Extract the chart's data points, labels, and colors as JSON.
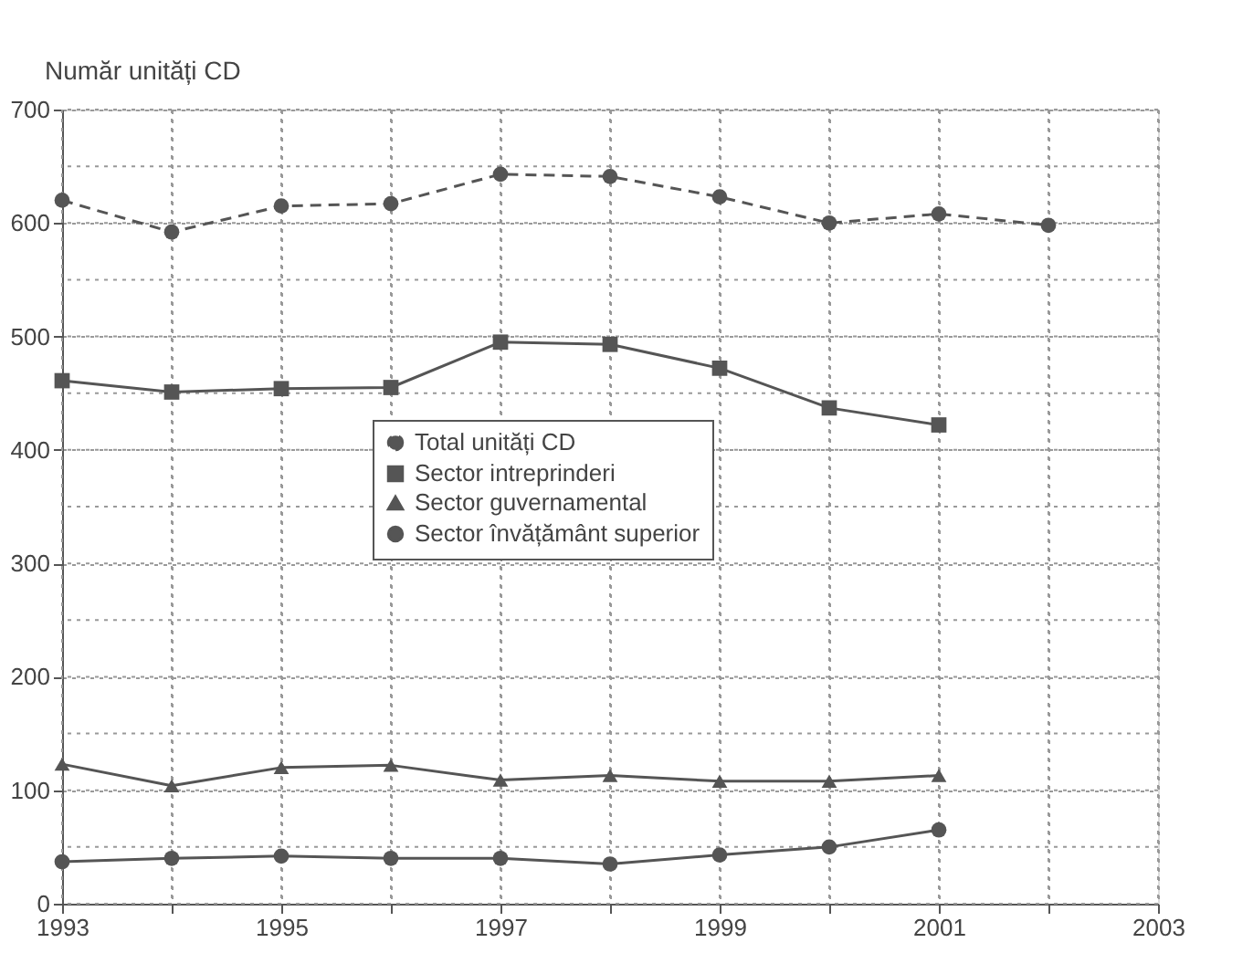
{
  "chart_data": {
    "type": "line",
    "ylabel": "Număr unități CD",
    "xlim": [
      1993,
      2003
    ],
    "xticks": [
      1993,
      {
        "value": 1994,
        "label": null
      },
      1995,
      {
        "value": 1996,
        "label": null
      },
      1997,
      {
        "value": 1998,
        "label": null
      },
      1999,
      {
        "value": 2000,
        "label": null
      },
      2001,
      {
        "value": 2002,
        "label": null
      },
      2003
    ],
    "ylim": [
      0,
      700
    ],
    "yticks": [
      0,
      {
        "value": 50,
        "label": null
      },
      100,
      {
        "value": 150,
        "label": null
      },
      200,
      {
        "value": 250,
        "label": null
      },
      300,
      {
        "value": 350,
        "label": null
      },
      400,
      {
        "value": 450,
        "label": null
      },
      500,
      {
        "value": 550,
        "label": null
      },
      600,
      {
        "value": 650,
        "label": null
      },
      700
    ],
    "grid": true,
    "legend": "center",
    "series": [
      {
        "name": "Total unități CD",
        "color": "#555555",
        "marker": "circle",
        "line_style": "dashed",
        "x": [
          1993,
          1994,
          1995,
          1996,
          1997,
          1998,
          1999,
          2000,
          2001,
          2002
        ],
        "values": [
          620,
          592,
          615,
          617,
          643,
          641,
          623,
          600,
          608,
          598
        ]
      },
      {
        "name": "Sector intreprinderi",
        "color": "#555555",
        "marker": "square",
        "line_style": "solid",
        "x": [
          1993,
          1994,
          1995,
          1996,
          1997,
          1998,
          1999,
          2000,
          2001
        ],
        "values": [
          461,
          451,
          454,
          455,
          495,
          493,
          472,
          437,
          422
        ]
      },
      {
        "name": "Sector guvernamental",
        "color": "#555555",
        "marker": "triangle",
        "line_style": "solid",
        "x": [
          1993,
          1994,
          1995,
          1996,
          1997,
          1998,
          1999,
          2000,
          2001
        ],
        "values": [
          123,
          104,
          120,
          122,
          109,
          113,
          108,
          108,
          113
        ]
      },
      {
        "name": "Sector învățământ superior",
        "color": "#555555",
        "marker": "circle",
        "line_style": "solid",
        "x": [
          1993,
          1994,
          1995,
          1996,
          1997,
          1998,
          1999,
          2000,
          2001
        ],
        "values": [
          37,
          40,
          42,
          40,
          40,
          35,
          43,
          50,
          65
        ]
      }
    ]
  }
}
